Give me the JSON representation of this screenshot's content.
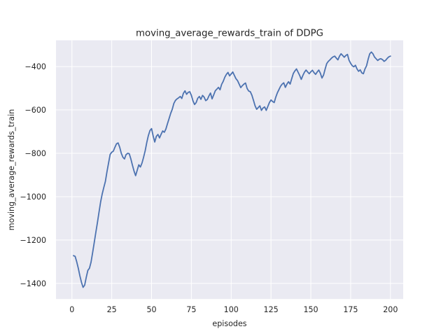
{
  "figure": {
    "title": "moving_average_rewards_train of DDPG",
    "xlabel": "episodes",
    "ylabel": "moving_average_rewards_train"
  },
  "colors": {
    "figure_bg": "#ffffff",
    "axes_bg": "#eaeaf2",
    "grid": "#ffffff",
    "line": "#4c72b0",
    "text": "#262626"
  },
  "chart_data": {
    "type": "line",
    "title": "moving_average_rewards_train of DDPG",
    "xlabel": "episodes",
    "ylabel": "moving_average_rewards_train",
    "x_ticks": [
      0,
      25,
      50,
      75,
      100,
      125,
      150,
      175,
      200
    ],
    "y_ticks": [
      -400,
      -600,
      -800,
      -1000,
      -1200,
      -1400
    ],
    "xlim": [
      -10,
      208
    ],
    "ylim": [
      -1472,
      -279
    ],
    "grid": true,
    "legend": false,
    "x_start": 1,
    "x_step": 1,
    "series": [
      {
        "name": "moving_average_rewards_train",
        "y": [
          -1272,
          -1275,
          -1300,
          -1330,
          -1365,
          -1395,
          -1418,
          -1408,
          -1372,
          -1340,
          -1330,
          -1302,
          -1258,
          -1212,
          -1165,
          -1120,
          -1072,
          -1025,
          -988,
          -958,
          -930,
          -885,
          -845,
          -805,
          -795,
          -790,
          -772,
          -756,
          -752,
          -772,
          -800,
          -818,
          -826,
          -806,
          -800,
          -802,
          -826,
          -855,
          -882,
          -903,
          -878,
          -853,
          -863,
          -845,
          -818,
          -788,
          -750,
          -718,
          -695,
          -686,
          -720,
          -748,
          -722,
          -713,
          -729,
          -712,
          -697,
          -703,
          -688,
          -663,
          -640,
          -616,
          -597,
          -570,
          -556,
          -549,
          -544,
          -538,
          -547,
          -523,
          -512,
          -528,
          -519,
          -516,
          -533,
          -558,
          -575,
          -566,
          -546,
          -538,
          -551,
          -533,
          -541,
          -557,
          -552,
          -536,
          -522,
          -549,
          -531,
          -512,
          -504,
          -496,
          -507,
          -482,
          -468,
          -449,
          -436,
          -427,
          -443,
          -434,
          -425,
          -441,
          -456,
          -465,
          -481,
          -497,
          -488,
          -481,
          -476,
          -501,
          -513,
          -516,
          -532,
          -556,
          -581,
          -597,
          -589,
          -581,
          -602,
          -591,
          -586,
          -602,
          -584,
          -566,
          -554,
          -561,
          -566,
          -541,
          -521,
          -506,
          -491,
          -481,
          -475,
          -496,
          -481,
          -470,
          -481,
          -456,
          -432,
          -420,
          -411,
          -426,
          -441,
          -459,
          -441,
          -426,
          -416,
          -425,
          -433,
          -424,
          -417,
          -428,
          -436,
          -425,
          -416,
          -431,
          -453,
          -439,
          -411,
          -386,
          -376,
          -369,
          -361,
          -355,
          -352,
          -361,
          -369,
          -352,
          -341,
          -349,
          -357,
          -349,
          -344,
          -371,
          -385,
          -396,
          -401,
          -394,
          -411,
          -422,
          -415,
          -429,
          -433,
          -411,
          -396,
          -366,
          -341,
          -333,
          -341,
          -356,
          -364,
          -372,
          -366,
          -364,
          -368,
          -376,
          -371,
          -362,
          -355,
          -352
        ]
      }
    ]
  }
}
